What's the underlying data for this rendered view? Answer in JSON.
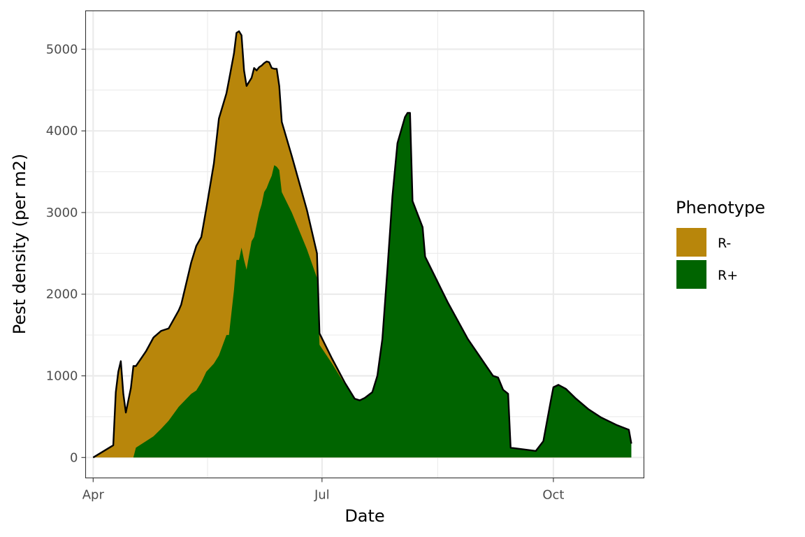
{
  "chart_data": {
    "type": "area",
    "title": "",
    "xlabel": "Date",
    "ylabel": "Pest density (per m2)",
    "x_is_date": true,
    "xlim": [
      "2021-03-29",
      "2021-11-06"
    ],
    "ylim": [
      -250,
      5470
    ],
    "x_ticks": [
      {
        "date": "2021-04-01",
        "label": "Apr"
      },
      {
        "date": "2021-07-01",
        "label": "Jul"
      },
      {
        "date": "2021-10-01",
        "label": "Oct"
      }
    ],
    "y_ticks": [
      0,
      1000,
      2000,
      3000,
      4000,
      5000
    ],
    "grid": true,
    "stacked": true,
    "legend": {
      "title": "Phenotype",
      "position": "right",
      "entries": [
        {
          "label": "R-",
          "color": "#B8860B"
        },
        {
          "label": "R+",
          "color": "#006400"
        }
      ]
    },
    "total_line_color": "#000000",
    "series": [
      {
        "name": "R+",
        "color": "#006400",
        "points": [
          [
            "2021-04-17",
            0
          ],
          [
            "2021-04-18",
            120
          ],
          [
            "2021-04-22",
            200
          ],
          [
            "2021-04-25",
            260
          ],
          [
            "2021-04-28",
            350
          ],
          [
            "2021-05-01",
            450
          ],
          [
            "2021-05-05",
            620
          ],
          [
            "2021-05-10",
            780
          ],
          [
            "2021-05-12",
            820
          ],
          [
            "2021-05-14",
            920
          ],
          [
            "2021-05-16",
            1050
          ],
          [
            "2021-05-19",
            1150
          ],
          [
            "2021-05-21",
            1250
          ],
          [
            "2021-05-24",
            1500
          ],
          [
            "2021-05-25",
            1500
          ],
          [
            "2021-05-27",
            2050
          ],
          [
            "2021-05-28",
            2420
          ],
          [
            "2021-05-29",
            2420
          ],
          [
            "2021-05-30",
            2570
          ],
          [
            "2021-05-31",
            2420
          ],
          [
            "2021-06-01",
            2300
          ],
          [
            "2021-06-03",
            2650
          ],
          [
            "2021-06-04",
            2700
          ],
          [
            "2021-06-05",
            2850
          ],
          [
            "2021-06-06",
            3000
          ],
          [
            "2021-06-07",
            3100
          ],
          [
            "2021-06-08",
            3250
          ],
          [
            "2021-06-09",
            3300
          ],
          [
            "2021-06-10",
            3380
          ],
          [
            "2021-06-11",
            3450
          ],
          [
            "2021-06-12",
            3580
          ],
          [
            "2021-06-13",
            3560
          ],
          [
            "2021-06-14",
            3520
          ],
          [
            "2021-06-15",
            3250
          ],
          [
            "2021-06-19",
            3000
          ],
          [
            "2021-06-25",
            2550
          ],
          [
            "2021-06-29",
            2200
          ],
          [
            "2021-06-30",
            1380
          ],
          [
            "2021-07-05",
            1150
          ],
          [
            "2021-07-10",
            900
          ],
          [
            "2021-07-14",
            720
          ],
          [
            "2021-07-16",
            700
          ],
          [
            "2021-07-18",
            730
          ],
          [
            "2021-07-21",
            800
          ],
          [
            "2021-07-23",
            1000
          ],
          [
            "2021-07-25",
            1450
          ],
          [
            "2021-07-27",
            2300
          ],
          [
            "2021-07-29",
            3200
          ],
          [
            "2021-07-31",
            3850
          ],
          [
            "2021-08-03",
            4170
          ],
          [
            "2021-08-04",
            4220
          ],
          [
            "2021-08-05",
            4220
          ],
          [
            "2021-08-06",
            3140
          ],
          [
            "2021-08-10",
            2820
          ],
          [
            "2021-08-11",
            2460
          ],
          [
            "2021-08-20",
            1900
          ],
          [
            "2021-08-28",
            1450
          ],
          [
            "2021-09-07",
            1000
          ],
          [
            "2021-09-09",
            980
          ],
          [
            "2021-09-11",
            830
          ],
          [
            "2021-09-13",
            780
          ],
          [
            "2021-09-14",
            120
          ],
          [
            "2021-09-24",
            80
          ],
          [
            "2021-09-27",
            200
          ],
          [
            "2021-09-30",
            700
          ],
          [
            "2021-10-01",
            860
          ],
          [
            "2021-10-03",
            890
          ],
          [
            "2021-10-06",
            840
          ],
          [
            "2021-10-10",
            720
          ],
          [
            "2021-10-15",
            590
          ],
          [
            "2021-10-20",
            490
          ],
          [
            "2021-10-26",
            400
          ],
          [
            "2021-10-31",
            340
          ],
          [
            "2021-11-01",
            170
          ]
        ]
      },
      {
        "name": "R-",
        "color": "#B8860B",
        "points": [
          [
            "2021-04-01",
            0
          ],
          [
            "2021-04-09",
            150
          ],
          [
            "2021-04-10",
            800
          ],
          [
            "2021-04-11",
            1050
          ],
          [
            "2021-04-12",
            1180
          ],
          [
            "2021-04-13",
            780
          ],
          [
            "2021-04-14",
            550
          ],
          [
            "2021-04-15",
            700
          ],
          [
            "2021-04-16",
            850
          ],
          [
            "2021-04-17",
            1120
          ],
          [
            "2021-04-18",
            1000
          ],
          [
            "2021-04-22",
            1100
          ],
          [
            "2021-04-25",
            1210
          ],
          [
            "2021-04-28",
            1200
          ],
          [
            "2021-05-01",
            1130
          ],
          [
            "2021-05-05",
            1180
          ],
          [
            "2021-05-06",
            1220
          ],
          [
            "2021-05-10",
            1610
          ],
          [
            "2021-05-12",
            1770
          ],
          [
            "2021-05-14",
            1780
          ],
          [
            "2021-05-16",
            2000
          ],
          [
            "2021-05-19",
            2450
          ],
          [
            "2021-05-21",
            2900
          ],
          [
            "2021-05-24",
            2960
          ],
          [
            "2021-05-25",
            3120
          ],
          [
            "2021-05-27",
            2900
          ],
          [
            "2021-05-28",
            2780
          ],
          [
            "2021-05-29",
            2800
          ],
          [
            "2021-05-30",
            2600
          ],
          [
            "2021-05-31",
            2320
          ],
          [
            "2021-06-01",
            2250
          ],
          [
            "2021-06-03",
            2000
          ],
          [
            "2021-06-04",
            2070
          ],
          [
            "2021-06-05",
            1890
          ],
          [
            "2021-06-06",
            1780
          ],
          [
            "2021-06-07",
            1700
          ],
          [
            "2021-06-08",
            1580
          ],
          [
            "2021-06-09",
            1550
          ],
          [
            "2021-06-10",
            1460
          ],
          [
            "2021-06-11",
            1320
          ],
          [
            "2021-06-12",
            1180
          ],
          [
            "2021-06-13",
            1200
          ],
          [
            "2021-06-14",
            1030
          ],
          [
            "2021-06-15",
            860
          ],
          [
            "2021-06-19",
            690
          ],
          [
            "2021-06-25",
            480
          ],
          [
            "2021-06-29",
            300
          ],
          [
            "2021-06-30",
            140
          ],
          [
            "2021-07-05",
            60
          ],
          [
            "2021-07-10",
            20
          ],
          [
            "2021-07-14",
            0
          ]
        ]
      }
    ]
  }
}
